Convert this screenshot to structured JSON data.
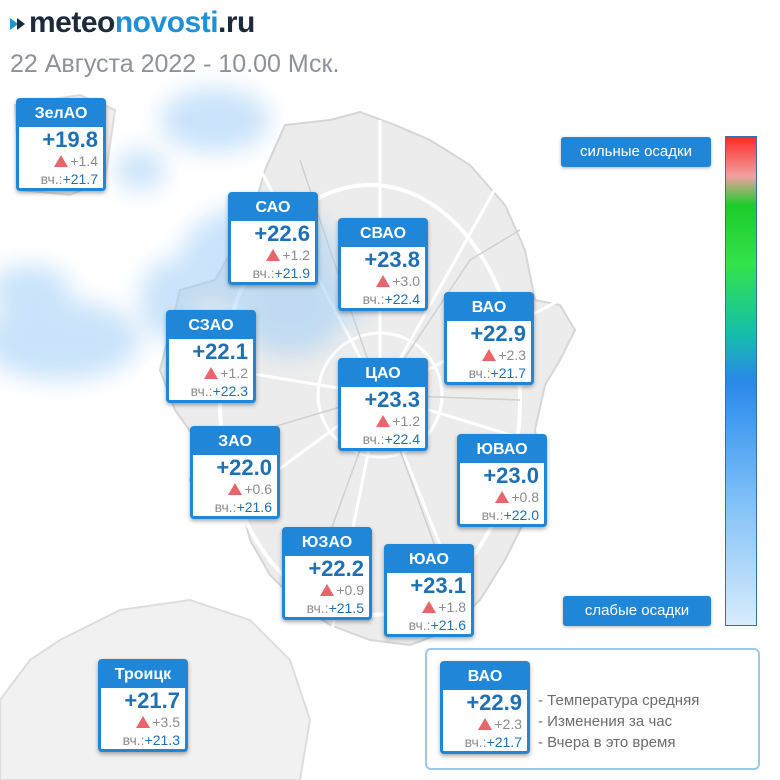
{
  "brand": {
    "part1": "meteo",
    "part2": "novosti",
    "part3": ".ru"
  },
  "date_text": "22 Августа 2022 - 10.00 Мск.",
  "yesterday_label": "вч.:",
  "colors": {
    "accent": "#1f86d8",
    "temp": "#1f6fb4",
    "up_triangle": "#e8656b",
    "precip": "#9fcdf6"
  },
  "districts": [
    {
      "name": "ЗелАО",
      "temp": "+19.8",
      "delta": "+1.4",
      "yesterday": "+21.7"
    },
    {
      "name": "САО",
      "temp": "+22.6",
      "delta": "+1.2",
      "yesterday": "+21.9"
    },
    {
      "name": "СВАО",
      "temp": "+23.8",
      "delta": "+3.0",
      "yesterday": "+22.4"
    },
    {
      "name": "ВАО",
      "temp": "+22.9",
      "delta": "+2.3",
      "yesterday": "+21.7"
    },
    {
      "name": "СЗАО",
      "temp": "+22.1",
      "delta": "+1.2",
      "yesterday": "+22.3"
    },
    {
      "name": "ЦАО",
      "temp": "+23.3",
      "delta": "+1.2",
      "yesterday": "+22.4"
    },
    {
      "name": "ЗАО",
      "temp": "+22.0",
      "delta": "+0.6",
      "yesterday": "+21.6"
    },
    {
      "name": "ЮВАО",
      "temp": "+23.0",
      "delta": "+0.8",
      "yesterday": "+22.0"
    },
    {
      "name": "ЮЗАО",
      "temp": "+22.2",
      "delta": "+0.9",
      "yesterday": "+21.5"
    },
    {
      "name": "ЮАО",
      "temp": "+23.1",
      "delta": "+1.8",
      "yesterday": "+21.6"
    },
    {
      "name": "Троицк",
      "temp": "+21.7",
      "delta": "+3.5",
      "yesterday": "+21.3"
    }
  ],
  "scale": {
    "top_label": "сильные осадки",
    "bottom_label": "слабые осадки"
  },
  "legend": {
    "example": {
      "name": "ВАО",
      "temp": "+22.9",
      "delta": "+2.3",
      "yesterday": "+21.7"
    },
    "line1": "- Температура средняя",
    "line2": "- Изменения за час",
    "line3": "- Вчера в это время"
  }
}
